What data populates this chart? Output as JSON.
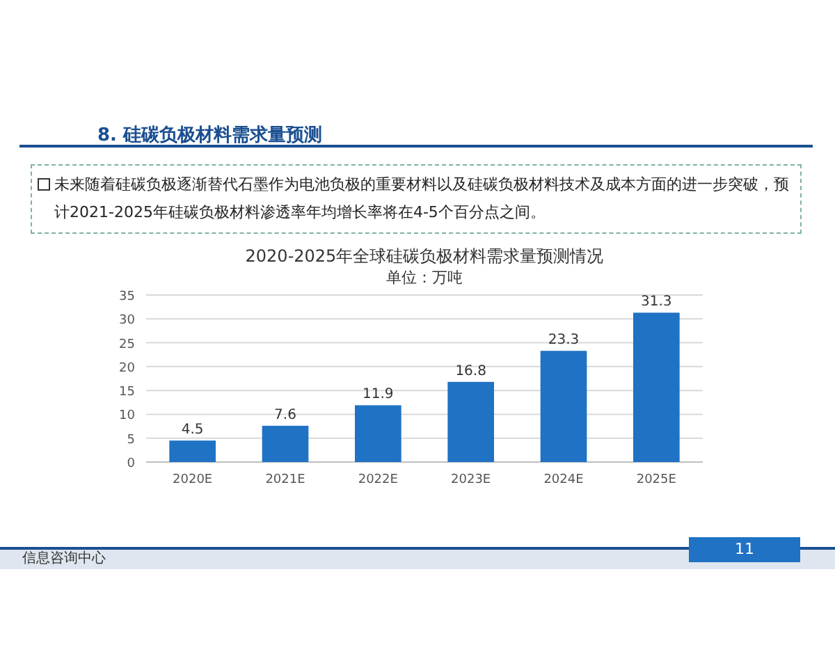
{
  "chart_data": {
    "type": "bar",
    "title": "2020-2025年全球硅碳负极材料需求量预测情况",
    "subtitle": "单位：万吨",
    "categories": [
      "2020E",
      "2021E",
      "2022E",
      "2023E",
      "2024E",
      "2025E"
    ],
    "values": [
      4.5,
      7.6,
      11.9,
      16.8,
      23.3,
      31.3
    ],
    "color": "#1f72c4",
    "ylim": [
      0,
      35
    ],
    "yticks": [
      0,
      5,
      10,
      15,
      20,
      25,
      30,
      35
    ],
    "grid": "y",
    "data_labels": true,
    "annotations": [
      "8. 硅碳负极材料需求量预测",
      "未来随着硅碳负极逐渐替代石墨作为电池负极的重要材料以及硅碳负极材料技术及成本方面的进一步突破，预计2021-2025年硅碳负极材料渗透率年均增长率将在4-5个百分点之间。",
      "信息咨询中心",
      "11"
    ]
  }
}
